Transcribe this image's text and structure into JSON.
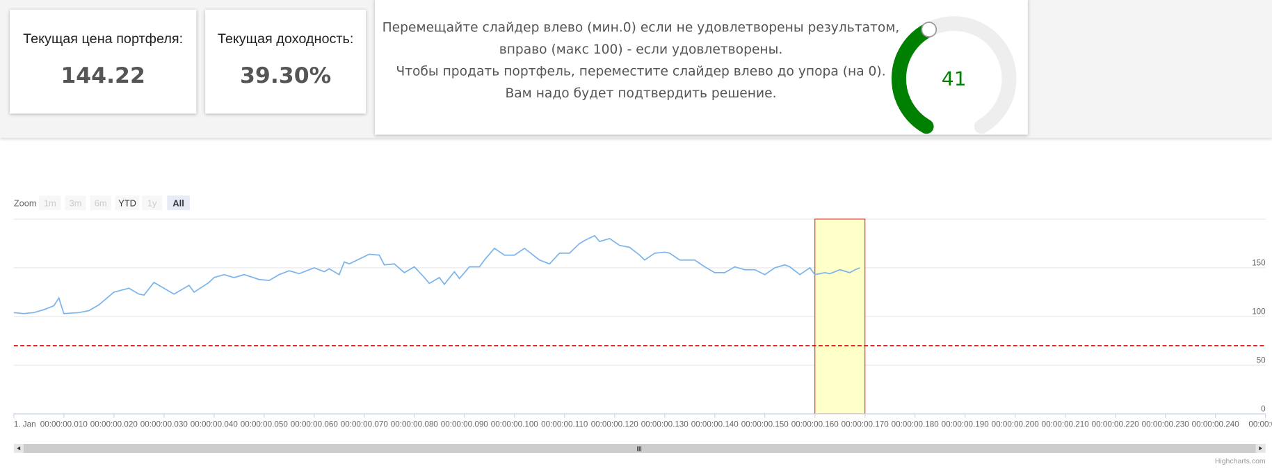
{
  "cards": [
    {
      "title": "Текущая цена портфеля:",
      "value": 144.22
    },
    {
      "title": "Текущая доходность:",
      "value": "39.30%"
    }
  ],
  "slider_panel": {
    "lines": [
      "Перемещайте слайдер влево (мин.0) если не удовлетворены результатом,",
      "вправо (макс 100) - если удовлетворены.",
      "Чтобы продать портфель, переместите слайдер влево до упора (на 0).",
      "Вам надо будет подтвердить решение."
    ],
    "gauge": {
      "value": 41,
      "min": 0,
      "max": 100,
      "color": "#008000"
    }
  },
  "range_selector": {
    "label": "Zoom",
    "buttons": [
      "1m",
      "3m",
      "6m",
      "YTD",
      "1y",
      "All"
    ],
    "selected": 5,
    "disabled": [
      0,
      1,
      2,
      4
    ]
  },
  "chart_data": {
    "type": "line",
    "color": "#7cb5ec",
    "x": [
      0,
      2,
      4,
      6,
      8,
      9,
      10,
      13,
      15,
      17,
      20,
      23,
      25,
      26,
      28,
      30,
      32,
      35,
      36,
      39,
      40,
      42,
      44,
      46,
      49,
      51,
      53,
      55,
      57,
      60,
      62,
      63,
      65,
      66,
      67,
      69,
      71,
      73,
      74,
      76,
      78,
      80,
      82,
      83,
      85,
      86,
      88,
      89,
      91,
      93,
      94,
      96,
      98,
      100,
      102,
      104,
      105,
      107,
      109,
      111,
      113,
      114,
      116,
      117,
      119,
      121,
      123,
      125,
      126,
      128,
      130,
      131,
      133,
      136,
      138,
      140,
      142,
      144,
      146,
      148,
      150,
      152,
      154,
      155,
      157,
      159,
      160,
      162,
      163,
      165,
      167,
      168,
      169
    ],
    "values": [
      104,
      103,
      104,
      107,
      111,
      119,
      103,
      104,
      106,
      112,
      125,
      129,
      123,
      122,
      135,
      129,
      123,
      132,
      125,
      135,
      140,
      143,
      140,
      143,
      138,
      137,
      143,
      147,
      144,
      150,
      146,
      149,
      143,
      156,
      154,
      159,
      164,
      163,
      153,
      154,
      145,
      151,
      140,
      134,
      140,
      133,
      146,
      139,
      151,
      151,
      158,
      170,
      163,
      163,
      170,
      162,
      158,
      154,
      165,
      165,
      175,
      178,
      183,
      177,
      180,
      173,
      171,
      163,
      158,
      165,
      166,
      165,
      158,
      158,
      151,
      145,
      145,
      151,
      148,
      148,
      143,
      150,
      153,
      151,
      143,
      150,
      143,
      145,
      144,
      148,
      145,
      148,
      150
    ],
    "xlim": [
      0,
      250
    ],
    "xticks": [
      {
        "value": 0,
        "label": "1. Jan"
      },
      {
        "value": 10,
        "label": "00:00:00.010"
      },
      {
        "value": 20,
        "label": "00:00:00.020"
      },
      {
        "value": 30,
        "label": "00:00:00.030"
      },
      {
        "value": 40,
        "label": "00:00:00.040"
      },
      {
        "value": 50,
        "label": "00:00:00.050"
      },
      {
        "value": 60,
        "label": "00:00:00.060"
      },
      {
        "value": 70,
        "label": "00:00:00.070"
      },
      {
        "value": 80,
        "label": "00:00:00.080"
      },
      {
        "value": 90,
        "label": "00:00:00.090"
      },
      {
        "value": 100,
        "label": "00:00:00.100"
      },
      {
        "value": 110,
        "label": "00:00:00.110"
      },
      {
        "value": 120,
        "label": "00:00:00.120"
      },
      {
        "value": 130,
        "label": "00:00:00.130"
      },
      {
        "value": 140,
        "label": "00:00:00.140"
      },
      {
        "value": 150,
        "label": "00:00:00.150"
      },
      {
        "value": 160,
        "label": "00:00:00.160"
      },
      {
        "value": 170,
        "label": "00:00:00.170"
      },
      {
        "value": 180,
        "label": "00:00:00.180"
      },
      {
        "value": 190,
        "label": "00:00:00.190"
      },
      {
        "value": 200,
        "label": "00:00:00.200"
      },
      {
        "value": 210,
        "label": "00:00:00.210"
      },
      {
        "value": 220,
        "label": "00:00:00.220"
      },
      {
        "value": 230,
        "label": "00:00:00.230"
      },
      {
        "value": 240,
        "label": "00:00:00.240"
      },
      {
        "value": 250,
        "label": "00:00:0..."
      }
    ],
    "ylim": [
      0,
      200
    ],
    "yticks": [
      0,
      50,
      100,
      150
    ],
    "grid": true,
    "plot_band": {
      "from": 160,
      "to": 170,
      "color": "#ffffc8",
      "border": "#e53935"
    },
    "plot_line": {
      "value": 70,
      "color": "#d50000"
    },
    "credits": "Highcharts.com"
  }
}
